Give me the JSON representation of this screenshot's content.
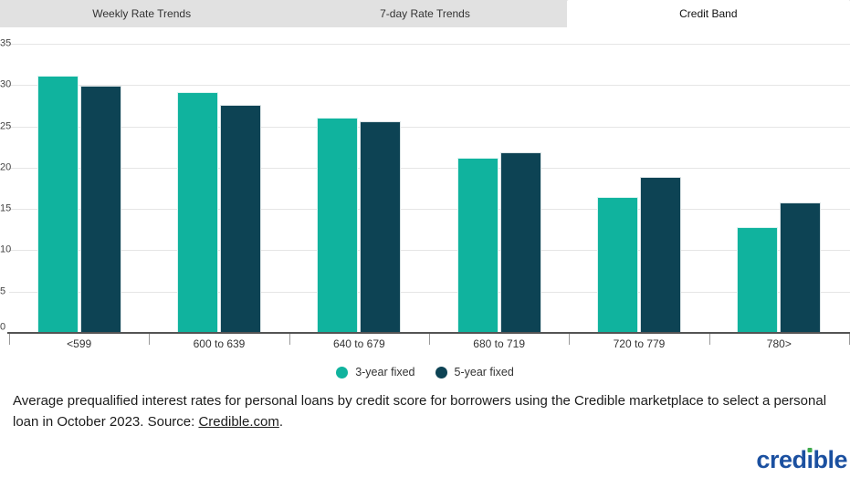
{
  "tabs": [
    {
      "label": "Weekly Rate Trends",
      "active": false
    },
    {
      "label": "7-day Rate Trends",
      "active": false
    },
    {
      "label": "Credit Band",
      "active": true
    }
  ],
  "chart_data": {
    "type": "bar",
    "title": "",
    "xlabel": "",
    "ylabel": "",
    "categories": [
      "<599",
      "600 to 639",
      "640 to 679",
      "680 to 719",
      "720 to 779",
      "780>"
    ],
    "series": [
      {
        "name": "3-year fixed",
        "color": "#10B39E",
        "values": [
          31.1,
          29.2,
          26.1,
          21.2,
          16.4,
          12.8
        ]
      },
      {
        "name": "5-year fixed",
        "color": "#0D4354",
        "values": [
          29.9,
          27.6,
          25.6,
          21.9,
          18.9,
          15.8
        ]
      }
    ],
    "ylim": [
      0,
      35
    ],
    "yticks": [
      0,
      5,
      10,
      15,
      20,
      25,
      30,
      35
    ],
    "grid": true,
    "legend_position": "bottom"
  },
  "caption": {
    "text": "Average prequalified interest rates for personal loans by credit score for borrowers using the Credible marketplace to select a personal loan in October 2023. Source: ",
    "link": "Credible.com",
    "suffix": "."
  },
  "logo": {
    "text": "credible",
    "pre": "cred",
    "dotless_i": "ı",
    "post": "ble",
    "blue": "#1B50A0",
    "green": "#3FAA4C"
  },
  "colors": {
    "tabbar_bg": "#e1e1e1",
    "active_tab_bg": "#ffffff",
    "gridline": "#e6e6e6",
    "axis": "#545454"
  }
}
